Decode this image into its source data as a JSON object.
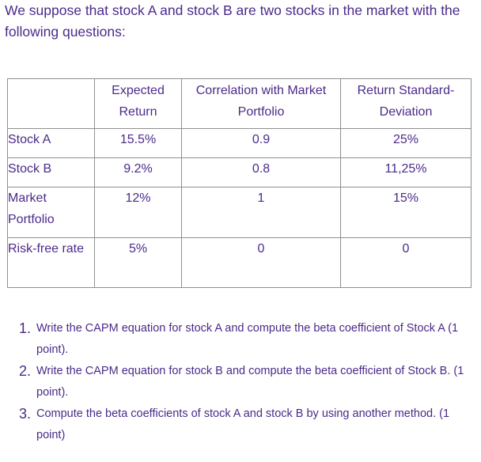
{
  "intro": "We suppose that stock A and stock B are two stocks in the market with the following questions:",
  "table": {
    "headers": [
      "",
      "Expected Return",
      "Correlation with Market Portfolio",
      "Return Standard-Deviation"
    ],
    "rows": [
      {
        "label": "Stock A",
        "expected_return": "15.5%",
        "correlation": "0.9",
        "std_dev": "25%"
      },
      {
        "label": "Stock B",
        "expected_return": "9.2%",
        "correlation": "0.8",
        "std_dev": "11,25%"
      },
      {
        "label": "Market Portfolio",
        "expected_return": "12%",
        "correlation": "1",
        "std_dev": "15%"
      },
      {
        "label": "Risk-free rate",
        "expected_return": "5%",
        "correlation": "0",
        "std_dev": "0"
      }
    ]
  },
  "questions": [
    {
      "number": "1.",
      "text": "Write the CAPM equation for stock A and compute the beta coefficient of Stock A (1 point)."
    },
    {
      "number": "2.",
      "text": "Write the CAPM equation for stock B and compute the beta coefficient of Stock B. (1 point)."
    },
    {
      "number": "3.",
      "text": "Compute the beta coefficients of stock A and stock B by using another method. (1 point)"
    }
  ]
}
